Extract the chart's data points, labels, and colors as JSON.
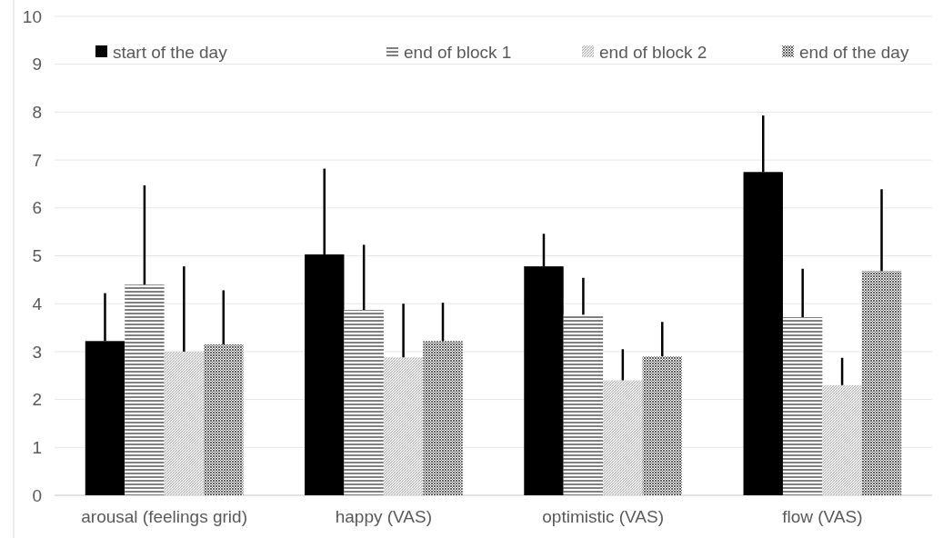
{
  "chart_data": {
    "type": "bar",
    "categories": [
      "arousal (feelings grid)",
      "happy (VAS)",
      "optimistic (VAS)",
      "flow (VAS)"
    ],
    "series": [
      {
        "name": "start of the day",
        "color": "#000000",
        "values": [
          3.22,
          5.03,
          4.78,
          6.75
        ],
        "errors": [
          [
            3.22,
            4.22
          ],
          [
            5.03,
            6.82
          ],
          [
            4.78,
            5.46
          ],
          [
            6.75,
            7.93
          ]
        ]
      },
      {
        "name": "end of block 1",
        "color": "#808080",
        "values": [
          4.4,
          3.87,
          3.77,
          3.72
        ],
        "errors": [
          [
            4.4,
            6.47
          ],
          [
            3.87,
            5.23
          ],
          [
            3.77,
            4.54
          ],
          [
            3.72,
            4.73
          ]
        ]
      },
      {
        "name": "end of block 2",
        "color": "#b0b0b0",
        "values": [
          3.0,
          2.88,
          2.4,
          2.3
        ],
        "errors": [
          [
            3.0,
            4.78
          ],
          [
            2.88,
            4.0
          ],
          [
            2.4,
            3.05
          ],
          [
            2.3,
            2.87
          ]
        ]
      },
      {
        "name": "end of the day",
        "color": "#606060",
        "values": [
          3.15,
          3.22,
          2.9,
          4.68
        ],
        "errors": [
          [
            3.15,
            4.28
          ],
          [
            3.22,
            4.02
          ],
          [
            2.9,
            3.62
          ],
          [
            4.68,
            6.39
          ]
        ]
      }
    ],
    "ylim": [
      0,
      10
    ],
    "yticks": [
      0,
      1,
      2,
      3,
      4,
      5,
      6,
      7,
      8,
      9,
      10
    ],
    "grid": "y",
    "legend": "top"
  }
}
